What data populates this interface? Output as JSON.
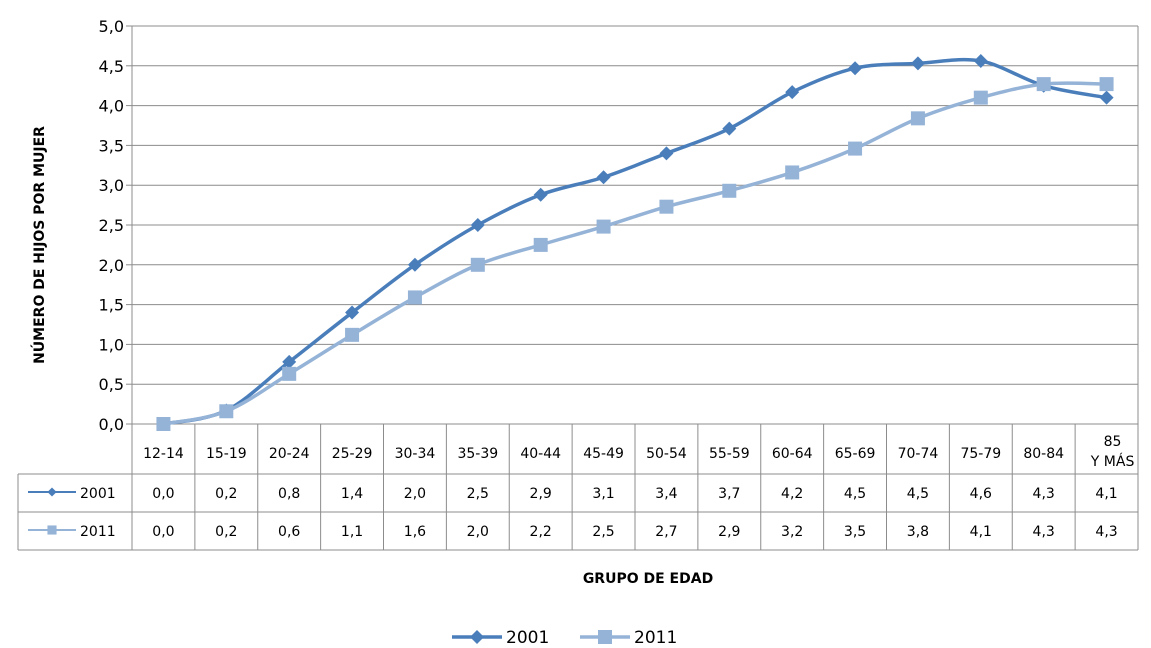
{
  "chart_data": {
    "type": "line",
    "xlabel": "GRUPO DE EDAD",
    "ylabel": "NÚMERO DE HIJOS POR MUJER",
    "ylim": [
      0,
      5
    ],
    "y_ticks": [
      "0,0",
      "0,5",
      "1,0",
      "1,5",
      "2,0",
      "2,5",
      "3,0",
      "3,5",
      "4,0",
      "4,5",
      "5,0"
    ],
    "grid": true,
    "legend_position": "bottom",
    "data_table": true,
    "categories": [
      "12-14",
      "15-19",
      "20-24",
      "25-29",
      "30-34",
      "35-39",
      "40-44",
      "45-49",
      "50-54",
      "55-59",
      "60-64",
      "65-69",
      "70-74",
      "75-79",
      "80-84",
      "85 Y MÁS"
    ],
    "series": [
      {
        "name": "2001",
        "color": "#4A7EBB",
        "marker": "diamond",
        "values": [
          0.0,
          0.17,
          0.78,
          1.4,
          2.0,
          2.5,
          2.88,
          3.1,
          3.4,
          3.71,
          4.17,
          4.47,
          4.53,
          4.56,
          4.25,
          4.1
        ],
        "table_values": [
          "0,0",
          "0,2",
          "0,8",
          "1,4",
          "2,0",
          "2,5",
          "2,9",
          "3,1",
          "3,4",
          "3,7",
          "4,2",
          "4,5",
          "4,5",
          "4,6",
          "4,3",
          "4,1"
        ]
      },
      {
        "name": "2011",
        "color": "#95B3D7",
        "marker": "square",
        "values": [
          0.0,
          0.16,
          0.63,
          1.12,
          1.59,
          2.0,
          2.25,
          2.48,
          2.73,
          2.93,
          3.16,
          3.46,
          3.84,
          4.1,
          4.27,
          4.27
        ],
        "table_values": [
          "0,0",
          "0,2",
          "0,6",
          "1,1",
          "1,6",
          "2,0",
          "2,2",
          "2,5",
          "2,7",
          "2,9",
          "3,2",
          "3,5",
          "3,8",
          "4,1",
          "4,3",
          "4,3"
        ]
      }
    ]
  }
}
